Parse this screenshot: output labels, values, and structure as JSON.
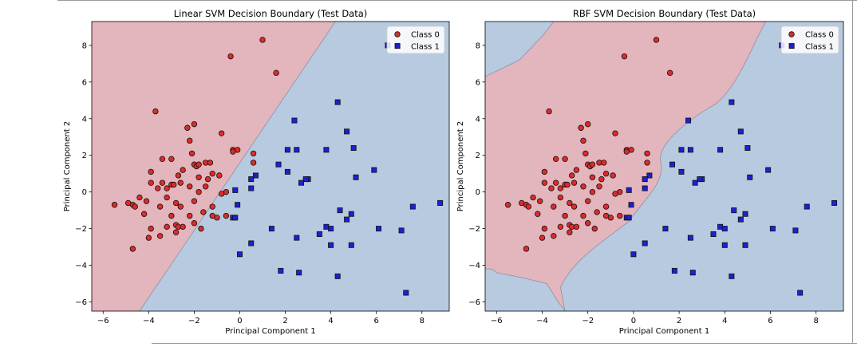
{
  "chart_data": [
    {
      "type": "scatter",
      "title": "Linear SVM Decision Boundary (Test Data)",
      "xlabel": "Principal Component 1",
      "ylabel": "Principal Component 2",
      "xlim": [
        -6.5,
        9.2
      ],
      "ylim": [
        -6.5,
        9.3
      ],
      "xticks": [
        -6,
        -4,
        -2,
        0,
        2,
        4,
        6,
        8
      ],
      "yticks": [
        -6,
        -4,
        -2,
        0,
        2,
        4,
        6,
        8
      ],
      "legend": "top-right",
      "regions": [
        {
          "label": "Class 0",
          "color": "#e3b5bc"
        },
        {
          "label": "Class 1",
          "color": "#b8cadf"
        }
      ],
      "boundary": [
        [
          -4.4,
          -6.5
        ],
        [
          4.2,
          9.3
        ]
      ],
      "series": [
        {
          "name": "Class 0",
          "marker": "circle",
          "color": "#dd2b2b",
          "points": [
            [
              1.0,
              8.3
            ],
            [
              -0.4,
              7.4
            ],
            [
              1.6,
              6.5
            ],
            [
              -3.7,
              4.4
            ],
            [
              -2.3,
              3.5
            ],
            [
              -2.0,
              3.7
            ],
            [
              -0.8,
              3.2
            ],
            [
              -2.2,
              2.8
            ],
            [
              -3.4,
              1.8
            ],
            [
              -3.0,
              1.8
            ],
            [
              -2.1,
              2.1
            ],
            [
              -0.3,
              2.3
            ],
            [
              -0.1,
              2.3
            ],
            [
              -0.3,
              2.2
            ],
            [
              0.6,
              2.1
            ],
            [
              0.6,
              1.6
            ],
            [
              -1.5,
              1.6
            ],
            [
              -1.3,
              1.6
            ],
            [
              -2.0,
              1.5
            ],
            [
              -1.9,
              1.4
            ],
            [
              -1.8,
              1.5
            ],
            [
              -2.5,
              1.2
            ],
            [
              -3.9,
              1.1
            ],
            [
              -2.7,
              0.9
            ],
            [
              -1.8,
              0.8
            ],
            [
              -1.2,
              1.0
            ],
            [
              -0.9,
              0.9
            ],
            [
              -1.4,
              0.7
            ],
            [
              -3.9,
              0.5
            ],
            [
              -3.4,
              0.5
            ],
            [
              -3.0,
              0.4
            ],
            [
              -2.9,
              0.4
            ],
            [
              -2.6,
              0.5
            ],
            [
              -3.6,
              0.2
            ],
            [
              -3.2,
              0.2
            ],
            [
              -2.2,
              0.3
            ],
            [
              -1.5,
              0.3
            ],
            [
              -1.8,
              0.0
            ],
            [
              -0.6,
              0.0
            ],
            [
              -0.8,
              -0.1
            ],
            [
              -4.4,
              -0.3
            ],
            [
              -3.2,
              -0.3
            ],
            [
              -2.8,
              -0.6
            ],
            [
              -2.0,
              -0.5
            ],
            [
              -4.9,
              -0.6
            ],
            [
              -4.7,
              -0.7
            ],
            [
              -4.1,
              -0.5
            ],
            [
              -5.5,
              -0.7
            ],
            [
              -3.5,
              -0.8
            ],
            [
              -2.6,
              -0.8
            ],
            [
              -1.2,
              -0.8
            ],
            [
              -4.6,
              -0.8
            ],
            [
              -4.2,
              -1.2
            ],
            [
              -3.0,
              -1.3
            ],
            [
              -2.2,
              -1.3
            ],
            [
              -1.0,
              -1.4
            ],
            [
              -1.6,
              -1.1
            ],
            [
              -1.2,
              -1.3
            ],
            [
              -0.6,
              -1.3
            ],
            [
              -3.9,
              -2.0
            ],
            [
              -3.2,
              -1.9
            ],
            [
              -2.8,
              -1.8
            ],
            [
              -2.7,
              -1.9
            ],
            [
              -2.5,
              -1.9
            ],
            [
              -2.0,
              -1.7
            ],
            [
              -1.7,
              -2.0
            ],
            [
              -2.8,
              -2.2
            ],
            [
              -3.5,
              -2.4
            ],
            [
              -4.0,
              -2.5
            ],
            [
              -4.7,
              -3.1
            ]
          ]
        },
        {
          "name": "Class 1",
          "marker": "square",
          "color": "#1f1fd1",
          "points": [
            [
              6.5,
              8.0
            ],
            [
              4.3,
              4.9
            ],
            [
              2.4,
              3.9
            ],
            [
              4.7,
              3.3
            ],
            [
              2.1,
              2.3
            ],
            [
              2.5,
              2.3
            ],
            [
              3.8,
              2.3
            ],
            [
              5.0,
              2.4
            ],
            [
              1.7,
              1.5
            ],
            [
              2.1,
              1.1
            ],
            [
              5.9,
              1.2
            ],
            [
              0.7,
              0.9
            ],
            [
              3.0,
              0.7
            ],
            [
              2.9,
              0.7
            ],
            [
              0.5,
              0.7
            ],
            [
              2.7,
              0.5
            ],
            [
              5.1,
              0.8
            ],
            [
              -0.2,
              0.1
            ],
            [
              0.5,
              0.2
            ],
            [
              -0.1,
              -0.7
            ],
            [
              4.4,
              -1.0
            ],
            [
              4.9,
              -1.2
            ],
            [
              4.7,
              -1.5
            ],
            [
              7.6,
              -0.8
            ],
            [
              8.8,
              -0.6
            ],
            [
              -0.3,
              -1.4
            ],
            [
              -0.2,
              -1.4
            ],
            [
              1.4,
              -2.0
            ],
            [
              3.8,
              -1.9
            ],
            [
              4.0,
              -2.0
            ],
            [
              3.5,
              -2.3
            ],
            [
              6.1,
              -2.0
            ],
            [
              7.1,
              -2.1
            ],
            [
              2.5,
              -2.5
            ],
            [
              4.0,
              -2.9
            ],
            [
              4.9,
              -2.9
            ],
            [
              0.5,
              -2.8
            ],
            [
              0.0,
              -3.4
            ],
            [
              1.8,
              -4.3
            ],
            [
              2.6,
              -4.4
            ],
            [
              4.3,
              -4.6
            ],
            [
              7.3,
              -5.5
            ]
          ]
        }
      ]
    },
    {
      "type": "scatter",
      "title": "RBF SVM Decision Boundary (Test Data)",
      "xlabel": "Principal Component 1",
      "ylabel": "Principal Component 2",
      "xlim": [
        -6.5,
        9.2
      ],
      "ylim": [
        -6.5,
        9.3
      ],
      "xticks": [
        -6,
        -4,
        -2,
        0,
        2,
        4,
        6,
        8
      ],
      "yticks": [
        -6,
        -4,
        -2,
        0,
        2,
        4,
        6,
        8
      ],
      "legend": "top-right",
      "regions": [
        {
          "label": "Class 0",
          "color": "#e3b5bc"
        },
        {
          "label": "Class 1",
          "color": "#b8cadf"
        }
      ],
      "boundary_main": [
        [
          -3.0,
          -6.5
        ],
        [
          -3.3,
          -6.0
        ],
        [
          -3.8,
          -5.0
        ],
        [
          -4.8,
          -4.7
        ],
        [
          -6.0,
          -4.4
        ],
        [
          -6.2,
          -4.2
        ]
      ],
      "boundary_top": [
        [
          -6.5,
          6.3
        ],
        [
          -5.0,
          7.2
        ],
        [
          -4.0,
          8.5
        ],
        [
          -3.5,
          9.3
        ]
      ],
      "series_ref": "same test points as the linear panel"
    }
  ]
}
